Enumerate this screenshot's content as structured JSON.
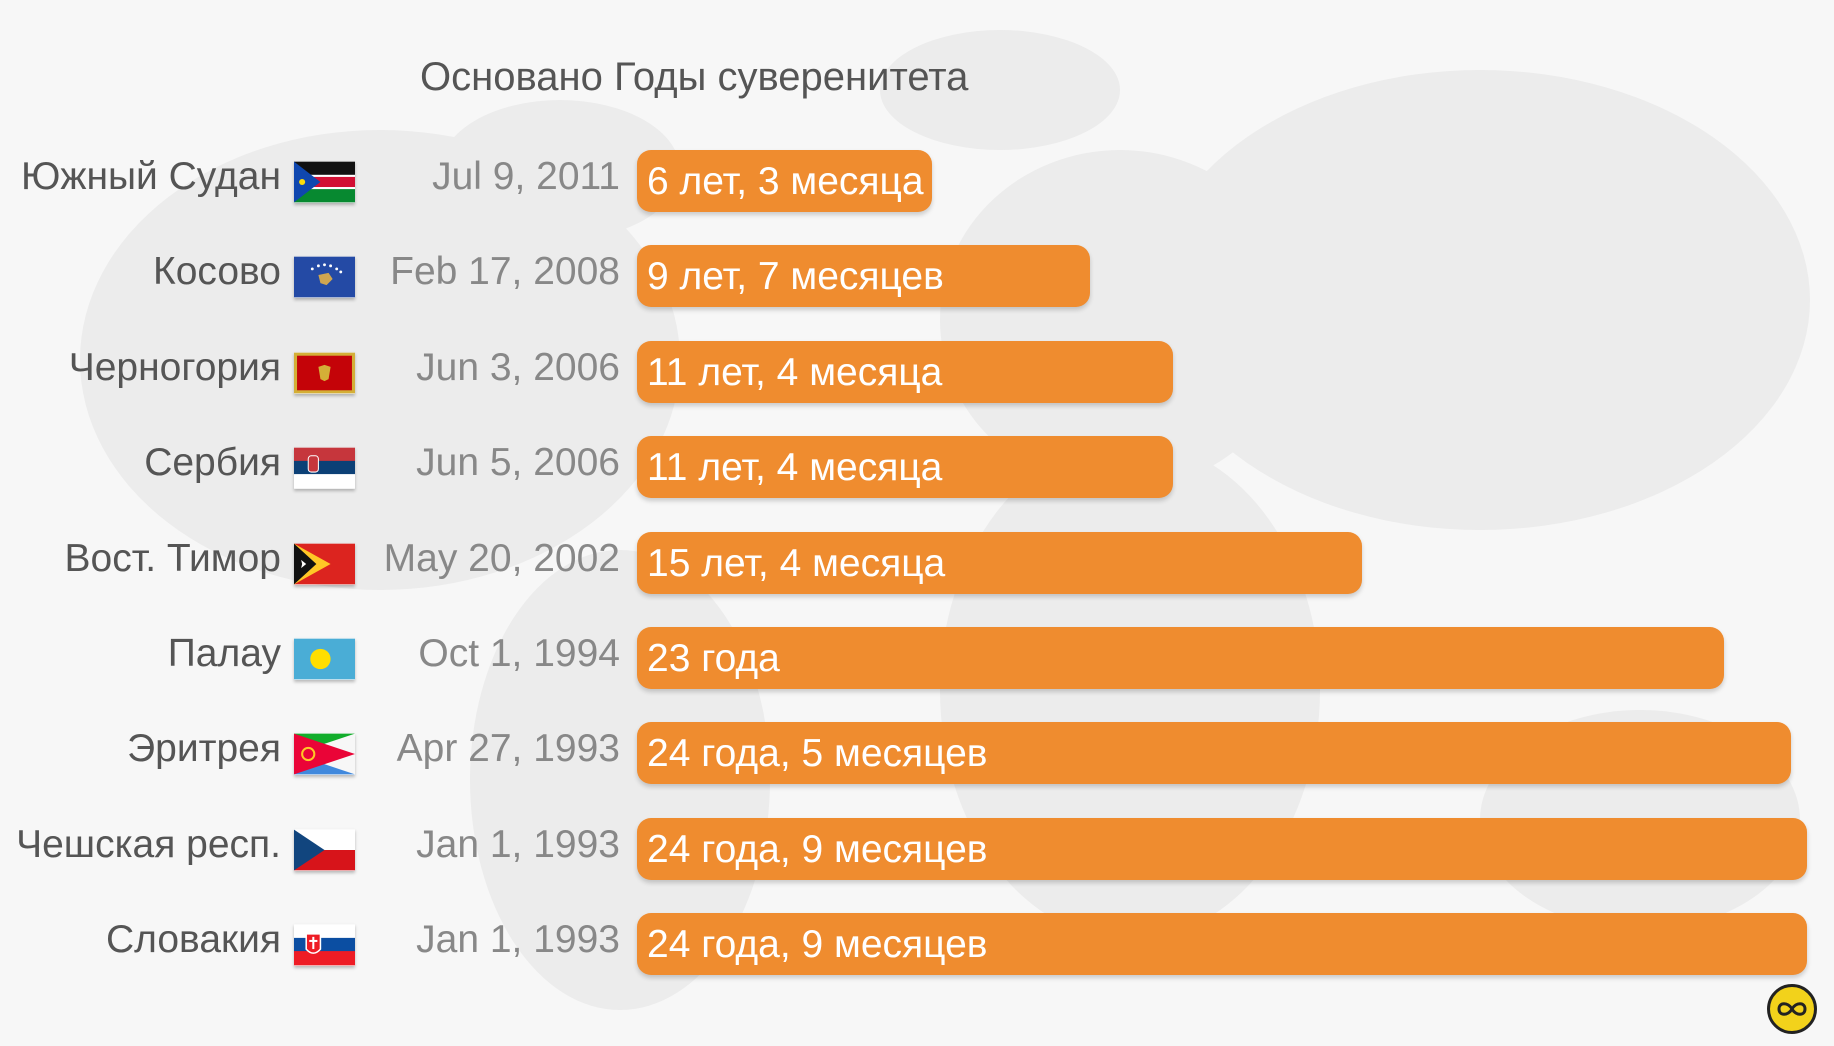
{
  "chart_data": {
    "type": "bar",
    "orientation": "horizontal",
    "header": "Основано Годы суверенитета",
    "rows": [
      {
        "country": "Южный Судан",
        "flag": "south-sudan",
        "date": "Jul 9, 2011",
        "years": 6.25,
        "label": "6 лет, 3 месяца"
      },
      {
        "country": "Косово",
        "flag": "kosovo",
        "date": "Feb 17, 2008",
        "years": 9.58,
        "label": "9 лет, 7 месяцев"
      },
      {
        "country": "Черногория",
        "flag": "montenegro",
        "date": "Jun 3, 2006",
        "years": 11.33,
        "label": "11 лет, 4 месяца"
      },
      {
        "country": "Сербия",
        "flag": "serbia",
        "date": "Jun 5, 2006",
        "years": 11.33,
        "label": "11 лет, 4 месяца"
      },
      {
        "country": "Вост. Тимор",
        "flag": "east-timor",
        "date": "May 20, 2002",
        "years": 15.33,
        "label": "15 лет, 4 месяца"
      },
      {
        "country": "Палау",
        "flag": "palau",
        "date": "Oct 1, 1994",
        "years": 23.0,
        "label": "23 года"
      },
      {
        "country": "Эритрея",
        "flag": "eritrea",
        "date": "Apr 27, 1993",
        "years": 24.42,
        "label": "24 года, 5 месяцев"
      },
      {
        "country": "Чешская респ.",
        "flag": "czech-republic",
        "date": "Jan 1, 1993",
        "years": 24.75,
        "label": "24 года, 9 месяцев"
      },
      {
        "country": "Словакия",
        "flag": "slovakia",
        "date": "Jan 1, 1993",
        "years": 24.75,
        "label": "24 года, 9 месяцев"
      }
    ],
    "bar_color": "#ef8c2f",
    "xlim": [
      0,
      24.75
    ]
  },
  "icons": {
    "logo": "infinity-logo-icon"
  }
}
